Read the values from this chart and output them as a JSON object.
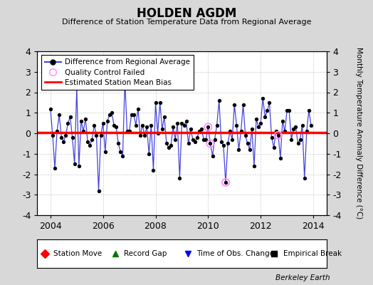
{
  "title": "HOLDEN AGDM",
  "subtitle": "Difference of Station Temperature Data from Regional Average",
  "ylabel_right": "Monthly Temperature Anomaly Difference (°C)",
  "xlim": [
    2003.5,
    2014.5
  ],
  "ylim": [
    -4,
    4
  ],
  "yticks": [
    -4,
    -3,
    -2,
    -1,
    0,
    1,
    2,
    3,
    4
  ],
  "xticks": [
    2004,
    2006,
    2008,
    2010,
    2012,
    2014
  ],
  "bias_value": 0.03,
  "background_color": "#d8d8d8",
  "plot_bg_color": "#ffffff",
  "line_color": "#4444dd",
  "marker_color": "#000000",
  "bias_color": "#ff0000",
  "qc_fail_color": "#ff88ff",
  "berkeley_earth_text": "Berkeley Earth",
  "months": [
    2004.0,
    2004.083,
    2004.167,
    2004.25,
    2004.333,
    2004.417,
    2004.5,
    2004.583,
    2004.667,
    2004.75,
    2004.833,
    2004.917,
    2005.0,
    2005.083,
    2005.167,
    2005.25,
    2005.333,
    2005.417,
    2005.5,
    2005.583,
    2005.667,
    2005.75,
    2005.833,
    2005.917,
    2006.0,
    2006.083,
    2006.167,
    2006.25,
    2006.333,
    2006.417,
    2006.5,
    2006.583,
    2006.667,
    2006.75,
    2006.833,
    2006.917,
    2007.0,
    2007.083,
    2007.167,
    2007.25,
    2007.333,
    2007.417,
    2007.5,
    2007.583,
    2007.667,
    2007.75,
    2007.833,
    2007.917,
    2008.0,
    2008.083,
    2008.167,
    2008.25,
    2008.333,
    2008.417,
    2008.5,
    2008.583,
    2008.667,
    2008.75,
    2008.833,
    2008.917,
    2009.0,
    2009.083,
    2009.167,
    2009.25,
    2009.333,
    2009.417,
    2009.5,
    2009.583,
    2009.667,
    2009.75,
    2009.833,
    2009.917,
    2010.0,
    2010.083,
    2010.167,
    2010.25,
    2010.333,
    2010.417,
    2010.5,
    2010.583,
    2010.667,
    2010.75,
    2010.833,
    2010.917,
    2011.0,
    2011.083,
    2011.167,
    2011.25,
    2011.333,
    2011.417,
    2011.5,
    2011.583,
    2011.667,
    2011.75,
    2011.833,
    2011.917,
    2012.0,
    2012.083,
    2012.167,
    2012.25,
    2012.333,
    2012.417,
    2012.5,
    2012.583,
    2012.667,
    2012.75,
    2012.833,
    2012.917,
    2013.0,
    2013.083,
    2013.167,
    2013.25,
    2013.333,
    2013.417,
    2013.5,
    2013.583,
    2013.667,
    2013.75,
    2013.833,
    2013.917
  ],
  "values": [
    1.2,
    -0.1,
    -1.7,
    0.1,
    0.9,
    -0.2,
    -0.4,
    -0.1,
    0.5,
    0.8,
    -0.2,
    -1.5,
    2.2,
    -1.6,
    0.6,
    0.1,
    0.7,
    -0.4,
    -0.6,
    -0.3,
    0.4,
    -0.1,
    -2.8,
    -0.1,
    0.5,
    -0.9,
    0.6,
    0.9,
    1.0,
    0.4,
    0.3,
    -0.5,
    -0.9,
    -1.1,
    2.6,
    0.1,
    0.1,
    0.9,
    0.9,
    0.4,
    1.2,
    -0.1,
    0.4,
    -0.1,
    0.3,
    -1.0,
    0.4,
    -1.8,
    1.5,
    0.0,
    1.5,
    0.2,
    0.8,
    -0.5,
    -0.7,
    -0.6,
    0.3,
    -0.3,
    0.5,
    -2.2,
    0.5,
    0.4,
    0.6,
    -0.5,
    0.2,
    -0.3,
    -0.4,
    -0.2,
    0.1,
    0.2,
    -0.3,
    -0.3,
    0.3,
    -0.5,
    -1.1,
    -0.3,
    0.4,
    1.6,
    -0.4,
    -0.6,
    -2.4,
    -0.5,
    0.1,
    -0.3,
    1.4,
    0.4,
    -0.8,
    0.1,
    1.4,
    -0.1,
    -0.5,
    -0.8,
    0.2,
    -1.6,
    0.7,
    0.3,
    0.5,
    1.7,
    0.8,
    1.1,
    1.5,
    -0.2,
    -0.7,
    0.1,
    -0.1,
    -1.2,
    0.6,
    0.1,
    1.1,
    1.1,
    -0.3,
    0.2,
    0.3,
    -0.5,
    -0.3,
    0.4,
    -2.2,
    0.1,
    1.1,
    0.4
  ],
  "qc_fail_indices": [
    72,
    73,
    80,
    104
  ],
  "grid_color": "#cccccc"
}
